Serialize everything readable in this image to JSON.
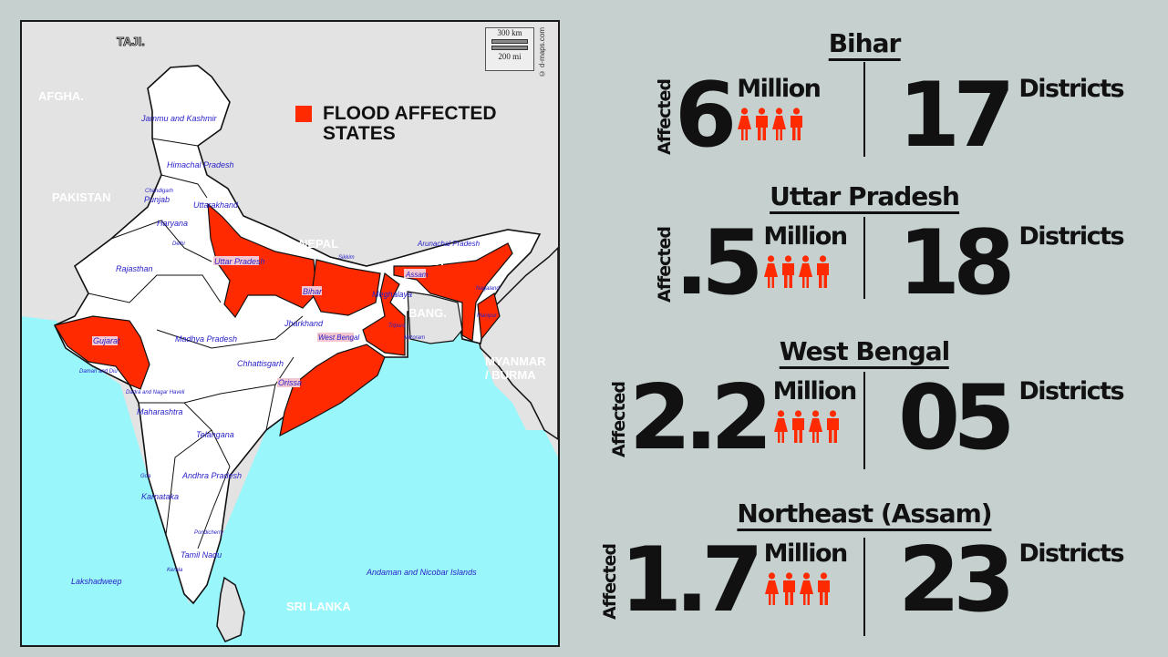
{
  "map": {
    "legend_label_line1": "FLOOD AFFECTED",
    "legend_label_line2": "STATES",
    "legend_color": "#ff2a00",
    "scale_km": "300 km",
    "scale_mi": "200 mi",
    "credit": "© d-maps.com",
    "colors": {
      "sea": "#99f6fb",
      "land": "#e3e3e3",
      "india": "#ffffff",
      "flood": "#ff2a00"
    },
    "countries": [
      "TAJI.",
      "AFGHA.",
      "PAKISTAN",
      "NEPAL",
      "BHU.",
      "BANG.",
      "MYANMAR",
      "/ BURMA",
      "SRI LANKA"
    ],
    "states": [
      "Jammu and Kashmir",
      "Himachal Pradesh",
      "Chandigarh",
      "Punjab",
      "Uttarakhand",
      "Haryana",
      "Delhi",
      "Rajasthan",
      "Uttar Pradesh",
      "Bihar",
      "Sikkim",
      "Arunachal Pradesh",
      "Assam",
      "Nagaland",
      "Meghalaya",
      "Manipur",
      "Tripura",
      "Mizoram",
      "Jharkhand",
      "West Bengal",
      "Gujarat",
      "Madhya Pradesh",
      "Chhattisgarh",
      "Orissa",
      "Daman and Diu",
      "Dadra and Nagar Haveli",
      "Maharashtra",
      "Telangana",
      "Goa",
      "Andhra Pradesh",
      "Karnataka",
      "Pondicherry",
      "Tamil Nadu",
      "Kerala",
      "Lakshadweep",
      "Andaman and Nicobar Islands"
    ],
    "flood_states": [
      "Uttar Pradesh",
      "Bihar",
      "West Bengal",
      "Assam",
      "Gujarat",
      "Orissa",
      "Manipur"
    ]
  },
  "stats": [
    {
      "region": "Bihar",
      "affected_label": "Affected",
      "affected": "6",
      "affected_unit": "Million",
      "districts": "17",
      "districts_label": "Districts"
    },
    {
      "region": "Uttar Pradesh",
      "affected_label": "Affected",
      "affected": ".5",
      "affected_unit": "Million",
      "districts": "18",
      "districts_label": "Districts"
    },
    {
      "region": "West Bengal",
      "affected_label": "Affected",
      "affected": "2.2",
      "affected_unit": "Million",
      "districts": "05",
      "districts_label": "Districts"
    },
    {
      "region": "Northeast (Assam)",
      "affected_label": "Affected",
      "affected": "1.7",
      "affected_unit": "Million",
      "districts": "23",
      "districts_label": "Districts"
    }
  ],
  "icons": {
    "people": [
      "female-icon",
      "male-icon",
      "female-icon",
      "male-icon"
    ],
    "people_color": "#ff2a00"
  }
}
